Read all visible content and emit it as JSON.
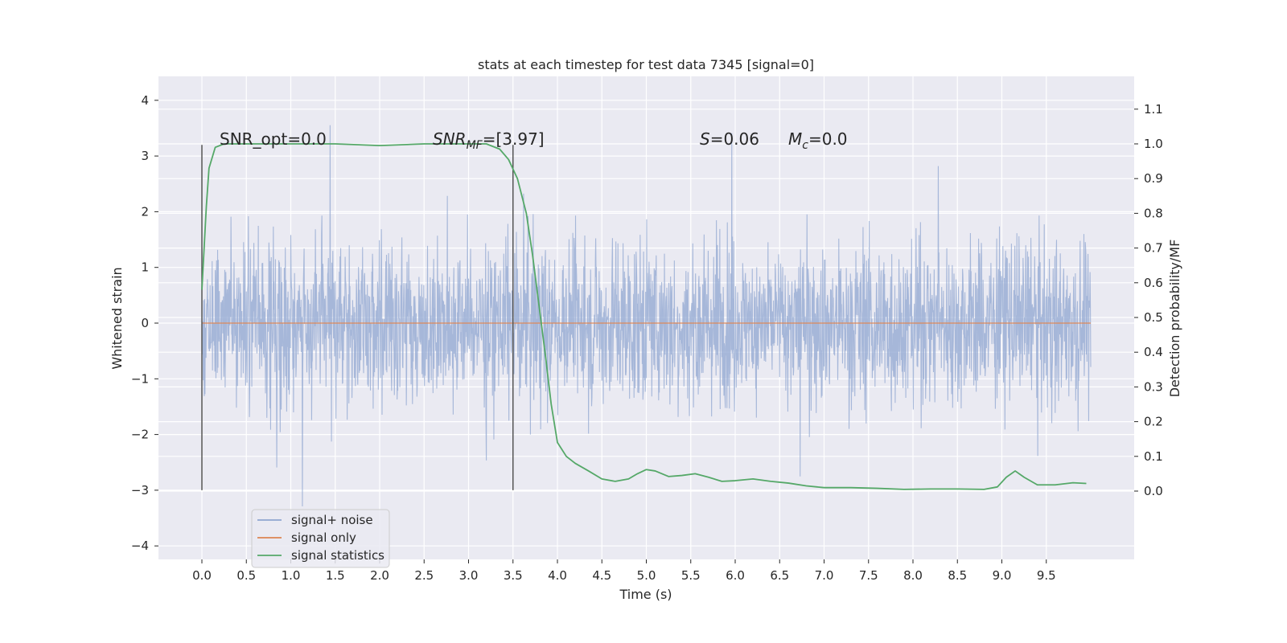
{
  "chart_data": {
    "type": "line",
    "title": "stats at each timestep for test data 7345 [signal=0]",
    "xlabel": "Time (s)",
    "ylabel": "Whitened strain",
    "ylabel_right": "Detection probability/MF",
    "xlim": [
      -0.5,
      10.5
    ],
    "ylim": [
      -4.2,
      4.4
    ],
    "ylim_right": [
      -0.2,
      1.2
    ],
    "x_ticks": [
      "0.0",
      "0.5",
      "1.0",
      "1.5",
      "2.0",
      "2.5",
      "3.0",
      "3.5",
      "4.0",
      "4.5",
      "5.0",
      "5.5",
      "6.0",
      "6.5",
      "7.0",
      "7.5",
      "8.0",
      "8.5",
      "9.0",
      "9.5"
    ],
    "y_ticks": [
      "4",
      "3",
      "2",
      "1",
      "0",
      "−1",
      "−2",
      "−3",
      "−4"
    ],
    "y_ticks_right": [
      "1.1",
      "1.0",
      "0.9",
      "0.8",
      "0.7",
      "0.6",
      "0.5",
      "0.4",
      "0.3",
      "0.2",
      "0.1",
      "0.0"
    ],
    "grid": true,
    "legend_position": "lower-left",
    "series": [
      {
        "name": "signal+ noise",
        "color": "#8fa6d0",
        "note": "whitened strain noise spanning 0.0–10.0 s, roughly between −3.9 and 4.0",
        "envelope": {
          "x_range": [
            0.0,
            10.0
          ],
          "y_min": -3.9,
          "y_max": 4.0,
          "dense_band": [
            -1.8,
            1.9
          ]
        }
      },
      {
        "name": "signal only",
        "color": "#dd8452",
        "x": [
          0.0,
          10.0
        ],
        "y": [
          0.0,
          0.0
        ]
      },
      {
        "name": "signal statistics",
        "color": "#55a868",
        "axis": "right",
        "x": [
          0.0,
          0.05,
          0.08,
          0.15,
          0.25,
          0.5,
          1.0,
          1.5,
          2.0,
          2.5,
          3.0,
          3.2,
          3.35,
          3.45,
          3.55,
          3.65,
          3.72,
          3.8,
          3.87,
          3.93,
          4.0,
          4.1,
          4.2,
          4.35,
          4.5,
          4.65,
          4.8,
          4.9,
          5.0,
          5.1,
          5.25,
          5.4,
          5.55,
          5.7,
          5.85,
          6.0,
          6.2,
          6.4,
          6.6,
          6.8,
          7.0,
          7.3,
          7.6,
          7.9,
          8.2,
          8.5,
          8.8,
          8.95,
          9.05,
          9.15,
          9.25,
          9.4,
          9.6,
          9.8,
          9.95
        ],
        "y": [
          0.58,
          0.82,
          0.93,
          0.99,
          1.0,
          1.0,
          1.0,
          1.0,
          0.995,
          1.0,
          1.0,
          1.0,
          0.985,
          0.955,
          0.9,
          0.8,
          0.68,
          0.52,
          0.38,
          0.25,
          0.14,
          0.1,
          0.08,
          0.058,
          0.035,
          0.028,
          0.035,
          0.05,
          0.062,
          0.058,
          0.042,
          0.045,
          0.05,
          0.04,
          0.028,
          0.03,
          0.035,
          0.028,
          0.023,
          0.015,
          0.01,
          0.01,
          0.008,
          0.005,
          0.006,
          0.006,
          0.005,
          0.012,
          0.04,
          0.058,
          0.04,
          0.018,
          0.018,
          0.024,
          0.022
        ]
      }
    ],
    "vlines": [
      {
        "x": 0.0,
        "y_range": [
          -3.0,
          3.2
        ]
      },
      {
        "x": 3.5,
        "y_range": [
          -3.0,
          3.2
        ]
      }
    ],
    "annotations": {
      "snr_opt": "SNR_opt=0.0",
      "snr_mf_prefix": "SNR",
      "snr_mf_sub": "MF",
      "snr_mf_value": "=[3.97]",
      "s_symbol": "S",
      "s_value": "=0.06",
      "mc_symbol": "M",
      "mc_sub": "c",
      "mc_value": "=0.0"
    }
  }
}
